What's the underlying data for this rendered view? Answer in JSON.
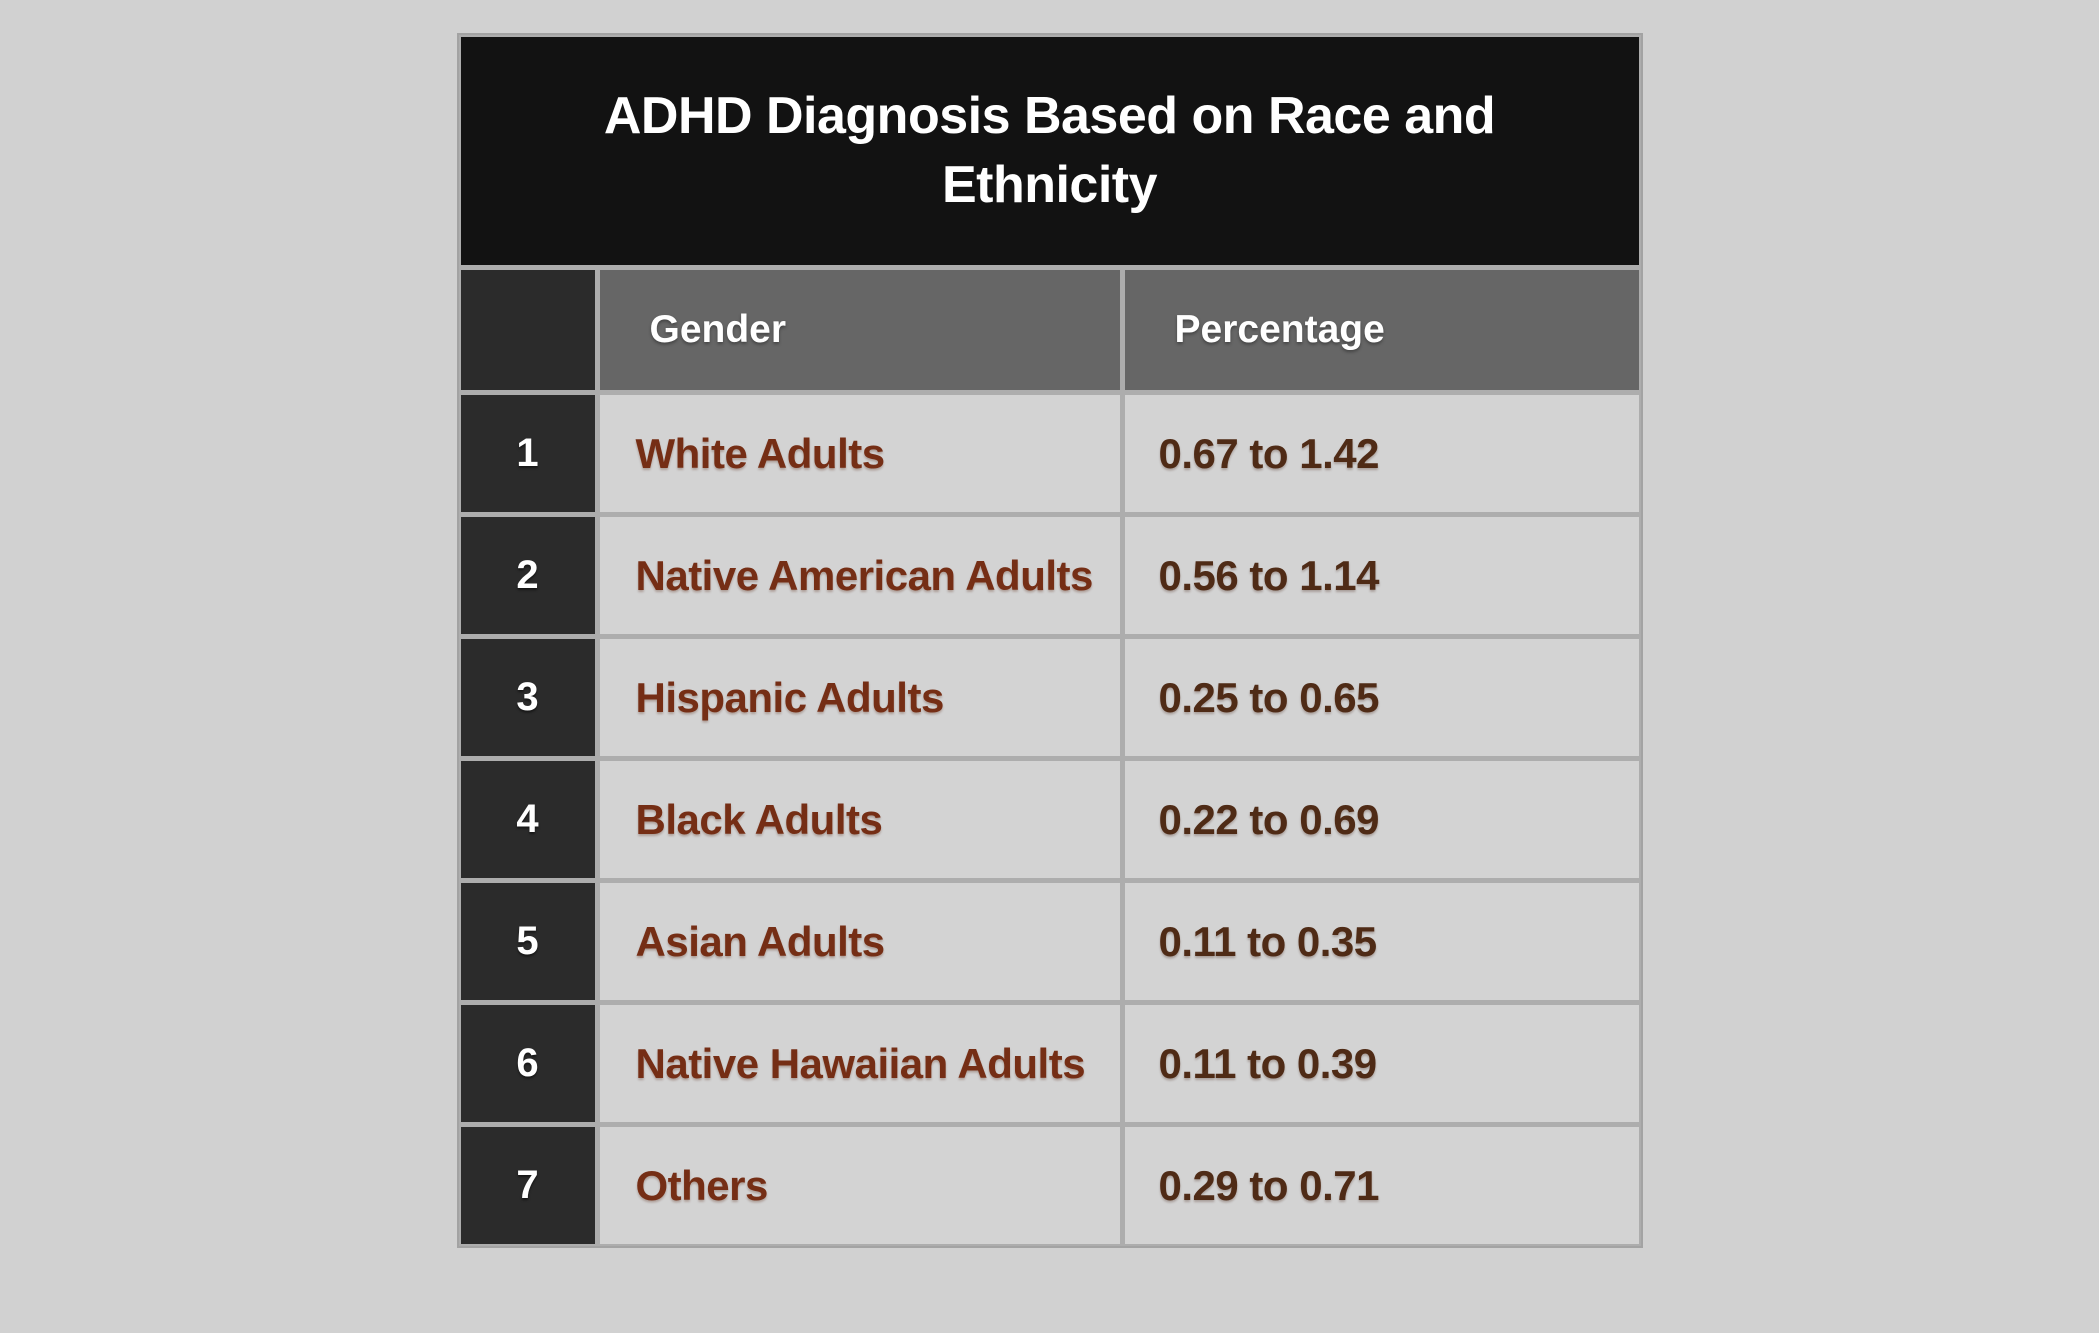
{
  "page": {
    "background": "#d1d1d1"
  },
  "ui": {
    "title_lines": [
      "ADHD Diagnosis Based on Race and",
      "Ethnicity"
    ]
  },
  "chart_data": {
    "type": "table",
    "title": "ADHD Diagnosis Based on Race and Ethnicity",
    "columns": [
      "",
      "Gender",
      "Percentage"
    ],
    "rows": [
      [
        "1",
        "White Adults",
        "0.67 to 1.42"
      ],
      [
        "2",
        "Native American Adults",
        "0.56 to 1.14"
      ],
      [
        "3",
        "Hispanic Adults",
        "0.25 to 0.65"
      ],
      [
        "4",
        "Black Adults",
        "0.22 to 0.69"
      ],
      [
        "5",
        "Asian Adults",
        "0.11 to 0.35"
      ],
      [
        "6",
        "Native Hawaiian Adults",
        "0.11 to 0.39"
      ],
      [
        "7",
        "Others",
        "0.29 to 0.71"
      ]
    ],
    "colors": {
      "page_bg": "#d1d1d1",
      "frame": "#adadad",
      "title_bg": "#121212",
      "header_bg": "#666666",
      "index_cell_bg": "#2b2b2b",
      "data_cell_bg": "#d3d3d3",
      "title_text": "#ffffff",
      "header_text": "#ffffff",
      "label_text": "#752e15",
      "value_text": "#4f2b16"
    }
  }
}
